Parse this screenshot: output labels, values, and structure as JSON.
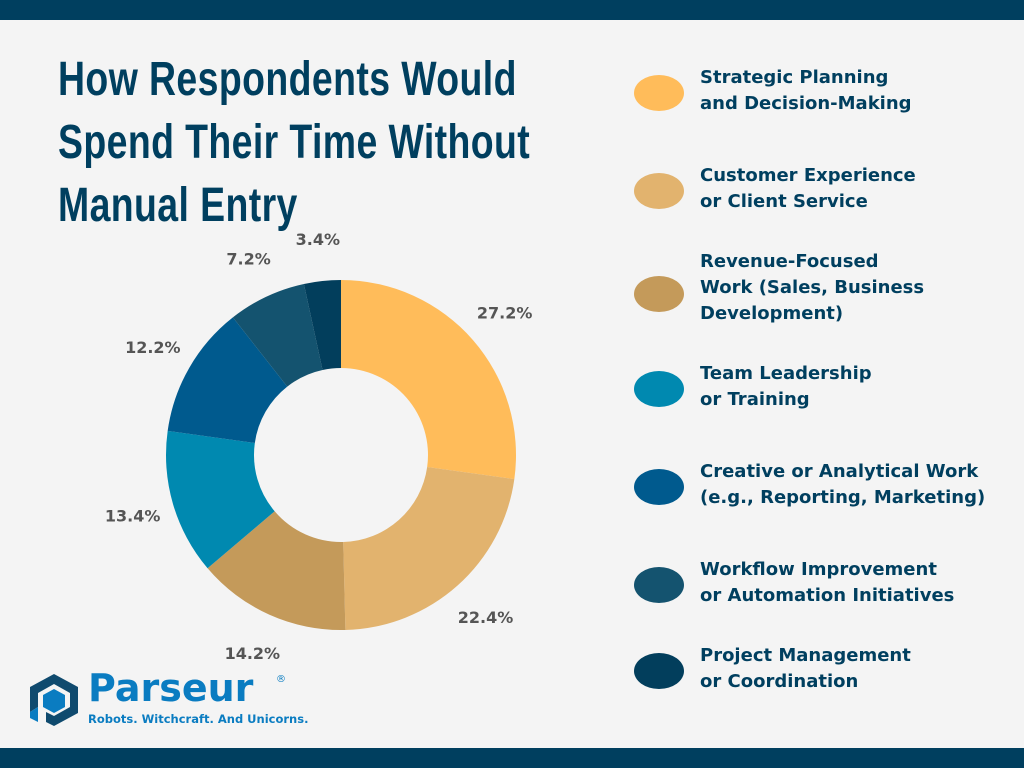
{
  "title_lines": [
    "How Respondents Would",
    "Spend Their Time Without",
    "Manual Entry"
  ],
  "logo": {
    "name": "Parseur",
    "registered": "®",
    "tagline": "Robots. Witchcraft. And Unicorns."
  },
  "colors": {
    "bar": "#003f5f",
    "background": "#f4f4f4",
    "text": "#003f5f",
    "brand": "#0a7cc1"
  },
  "chart_data": {
    "type": "pie",
    "donut": true,
    "title": "How Respondents Would Spend Their Time Without Manual Entry",
    "legend_position": "right",
    "categories": [
      "Strategic Planning\nand Decision-Making",
      "Customer Experience\nor Client Service",
      "Revenue-Focused\nWork (Sales, Business\nDevelopment)",
      "Team Leadership\nor Training",
      "Creative or Analytical Work\n(e.g., Reporting, Marketing)",
      "Workflow Improvement\nor Automation Initiatives",
      "Project Management\nor Coordination"
    ],
    "values": [
      27.2,
      22.4,
      14.2,
      13.4,
      12.2,
      7.2,
      3.4
    ],
    "data_labels": [
      "27.2%",
      "22.4%",
      "14.2%",
      "13.4%",
      "12.2%",
      "7.2%",
      "3.4%"
    ],
    "colors": [
      "#ffbc5a",
      "#e2b36e",
      "#c49a5a",
      "#0089b0",
      "#005a8e",
      "#14536f",
      "#023e5c"
    ]
  }
}
